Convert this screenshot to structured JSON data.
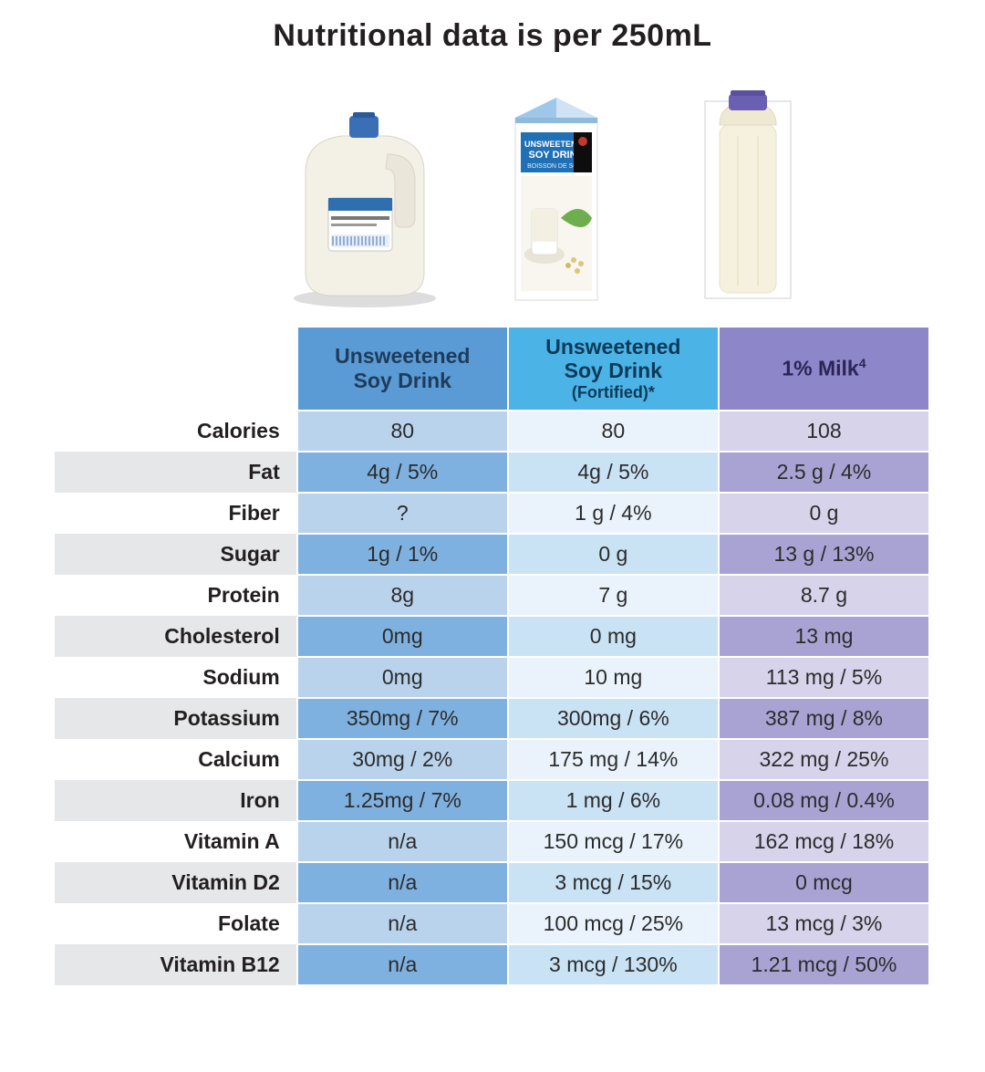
{
  "title": "Nutritional data is per 250mL",
  "title_color": "#231f20",
  "title_fontsize": 34,
  "columns": [
    {
      "key": "soy",
      "label_main": "Unsweetened",
      "label_line2": "Soy Drink",
      "label_sub": "",
      "header_bg": "#5a9bd5",
      "header_text": "#1f3b5b",
      "cell_bg_odd": "#b9d3ec",
      "cell_bg_even": "#7fb1e0",
      "cell_text": "#2b2b2b"
    },
    {
      "key": "soy_fort",
      "label_main": "Unsweetened",
      "label_line2": "Soy Drink",
      "label_sub": "(Fortified)*",
      "header_bg": "#4bb3e6",
      "header_text": "#0d3a57",
      "cell_bg_odd": "#eaf3fb",
      "cell_bg_even": "#c9e3f5",
      "cell_text": "#2b2b2b"
    },
    {
      "key": "milk",
      "label_main": "1% Milk",
      "label_line2": "",
      "label_sub": "",
      "sup": "4",
      "header_bg": "#8d86c9",
      "header_text": "#2d2456",
      "cell_bg_odd": "#d6d3ea",
      "cell_bg_even": "#a9a3d4",
      "cell_text": "#2b2b2b"
    }
  ],
  "rows": [
    {
      "label": "Calories",
      "values": [
        "80",
        "80",
        "108"
      ]
    },
    {
      "label": "Fat",
      "values": [
        "4g / 5%",
        "4g / 5%",
        "2.5 g / 4%"
      ]
    },
    {
      "label": "Fiber",
      "values": [
        "?",
        "1 g / 4%",
        "0 g"
      ]
    },
    {
      "label": "Sugar",
      "values": [
        "1g / 1%",
        "0 g",
        "13 g / 13%"
      ]
    },
    {
      "label": "Protein",
      "values": [
        "8g",
        "7 g",
        "8.7 g"
      ]
    },
    {
      "label": "Cholesterol",
      "values": [
        "0mg",
        "0 mg",
        "13 mg"
      ]
    },
    {
      "label": "Sodium",
      "values": [
        "0mg",
        "10 mg",
        "113 mg / 5%"
      ]
    },
    {
      "label": "Potassium",
      "values": [
        "350mg / 7%",
        "300mg / 6%",
        "387 mg / 8%"
      ]
    },
    {
      "label": "Calcium",
      "values": [
        "30mg  / 2%",
        "175 mg  / 14%",
        "322 mg  / 25%"
      ]
    },
    {
      "label": "Iron",
      "values": [
        "1.25mg / 7%",
        "1 mg / 6%",
        "0.08 mg / 0.4%"
      ]
    },
    {
      "label": "Vitamin A",
      "values": [
        "n/a",
        "150 mcg / 17%",
        "162 mcg / 18%"
      ]
    },
    {
      "label": "Vitamin D2",
      "values": [
        "n/a",
        "3 mcg / 15%",
        "0 mcg"
      ]
    },
    {
      "label": "Folate",
      "values": [
        "n/a",
        "100 mcg / 25%",
        "13 mcg / 3%"
      ]
    },
    {
      "label": "Vitamin B12",
      "values": [
        "n/a",
        "3 mcg / 130%",
        "1.21 mcg / 50%"
      ]
    }
  ],
  "images": {
    "jug": {
      "body": "#f3f0e6",
      "cap": "#3b6fb5",
      "label_bg": "#ffffff",
      "label_accent": "#2f6fb0"
    },
    "carton": {
      "body": "#ffffff",
      "top": "#9ec7ea",
      "panel": "#1f70b5",
      "accent": "#0d3a57"
    },
    "bottle": {
      "body": "#f6f1df",
      "cap": "#6a5fb0",
      "outline": "#cfcfcf"
    }
  }
}
